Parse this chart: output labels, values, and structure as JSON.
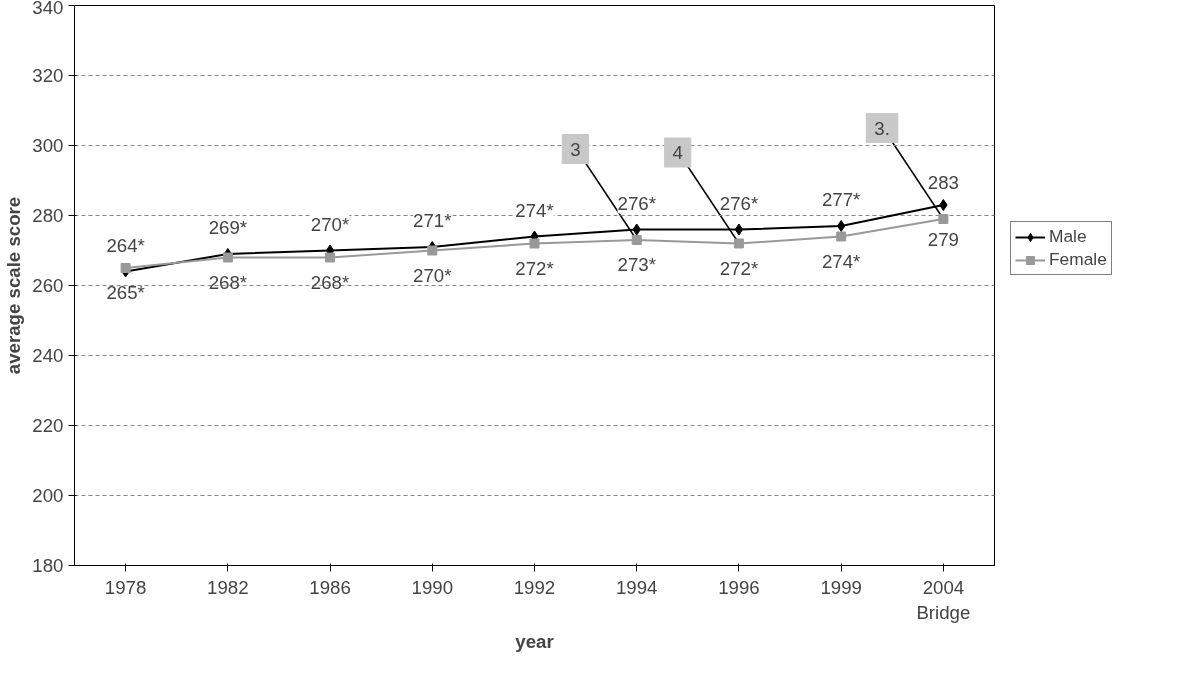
{
  "chart_data": {
    "type": "line",
    "xlabel": "year",
    "ylabel": "average scale score",
    "categories": [
      "1978",
      "1982",
      "1986",
      "1990",
      "1992",
      "1994",
      "1996",
      "1999",
      "2004\nBridge"
    ],
    "series": [
      {
        "name": "Male",
        "color": "#000000",
        "marker": "diamond",
        "values": [
          264,
          269,
          270,
          271,
          274,
          276,
          276,
          277,
          283
        ],
        "value_labels": [
          "264*",
          "269*",
          "270*",
          "271*",
          "274*",
          "276*",
          "276*",
          "277*",
          "283"
        ]
      },
      {
        "name": "Female",
        "color": "#999999",
        "marker": "square",
        "values": [
          265,
          268,
          268,
          270,
          272,
          273,
          272,
          274,
          279
        ],
        "value_labels": [
          "265*",
          "268*",
          "268*",
          "270*",
          "272*",
          "273*",
          "272*",
          "274*",
          "279"
        ]
      }
    ],
    "ylim": [
      180,
      340
    ],
    "yticks": [
      180,
      200,
      220,
      240,
      260,
      280,
      300,
      320,
      340
    ],
    "grid": "y",
    "legend": "right",
    "line_style": "solid",
    "annotations": [
      {
        "text": "3",
        "x": "1994",
        "y": 273
      },
      {
        "text": "4",
        "x": "1996",
        "y": 272
      },
      {
        "text": "3.",
        "x": "2004\nBridge",
        "y": 279
      }
    ]
  }
}
